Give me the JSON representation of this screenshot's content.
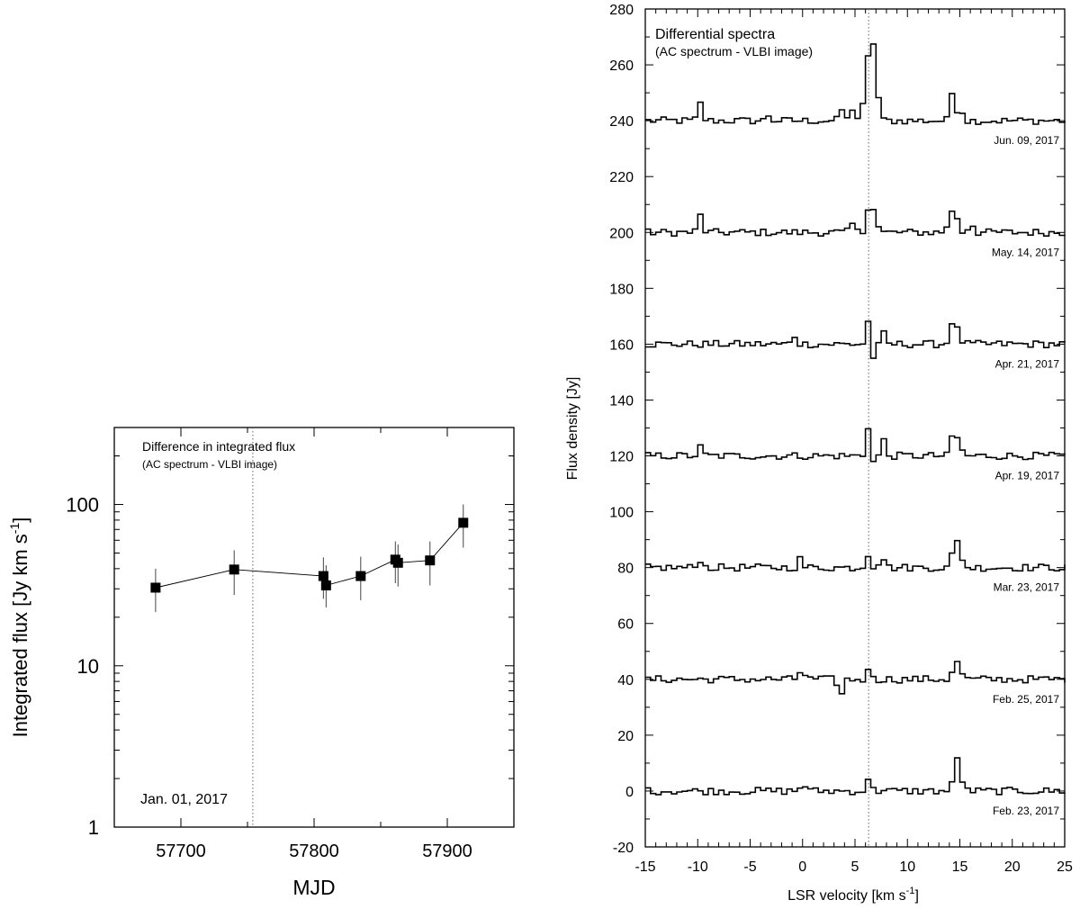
{
  "chart_data": [
    {
      "type": "scatter",
      "title": "Difference in integrated flux",
      "subtitle": "(AC spectrum - VLBI image)",
      "xlabel": "MJD",
      "ylabel": "Integrated flux [Jy km s",
      "ylabel_sup": "-1",
      "ylabel_end": "]",
      "yscale": "log",
      "xlim": [
        57650,
        57950
      ],
      "ylim": [
        1,
        300
      ],
      "xticks": [
        57700,
        57800,
        57900
      ],
      "yticks": [
        1,
        10,
        100
      ],
      "ytick_labels": [
        "1",
        "10",
        "100"
      ],
      "annotation": "Jan. 01, 2017",
      "reference_line_mjd": 57754,
      "series": [
        {
          "name": "integrated flux difference",
          "x": [
            57681,
            57740,
            57807,
            57809,
            57835,
            57861,
            57863,
            57887,
            57912
          ],
          "y": [
            30.5,
            39.5,
            36,
            31.5,
            36,
            45.5,
            43.5,
            45,
            77
          ],
          "yerr_low": [
            21.5,
            27.5,
            26,
            23,
            25.5,
            32.5,
            31,
            31.5,
            54
          ],
          "yerr_high": [
            40,
            52,
            47,
            42,
            47.5,
            59,
            56.5,
            59,
            100
          ]
        }
      ]
    },
    {
      "type": "line",
      "title": "Differential spectra",
      "subtitle": "(AC spectrum - VLBI image)",
      "xlabel": "LSR velocity [km s",
      "xlabel_sup": "-1",
      "xlabel_end": "]",
      "ylabel": "Flux density [Jy]",
      "xlim": [
        -15,
        25
      ],
      "ylim": [
        -20,
        280
      ],
      "xticks": [
        -15,
        -10,
        -5,
        0,
        5,
        10,
        15,
        20,
        25
      ],
      "yticks": [
        -20,
        0,
        20,
        40,
        60,
        80,
        100,
        120,
        140,
        160,
        180,
        200,
        220,
        240,
        260,
        280
      ],
      "reference_line_velocity": 6.3,
      "series": [
        {
          "name": "Jun. 09, 2017",
          "offset": 240,
          "peaks": [
            [
              -10,
              6
            ],
            [
              -3.5,
              2
            ],
            [
              3.5,
              4
            ],
            [
              4.6,
              5
            ],
            [
              5.8,
              13
            ],
            [
              6.3,
              35
            ],
            [
              6.8,
              12
            ],
            [
              14.1,
              11
            ],
            [
              14.8,
              5
            ]
          ]
        },
        {
          "name": "May. 14, 2017",
          "offset": 200,
          "peaks": [
            [
              -10,
              6
            ],
            [
              4.5,
              3
            ],
            [
              6.2,
              14
            ],
            [
              6.7,
              5
            ],
            [
              13.8,
              6
            ],
            [
              14.3,
              8
            ],
            [
              15.8,
              4
            ]
          ]
        },
        {
          "name": "Apr. 21, 2017",
          "offset": 160,
          "peaks": [
            [
              -1,
              3
            ],
            [
              6.1,
              9
            ],
            [
              6.6,
              -7
            ],
            [
              7.4,
              4
            ],
            [
              14,
              8
            ],
            [
              14.6,
              5
            ]
          ]
        },
        {
          "name": "Apr. 19, 2017",
          "offset": 120,
          "peaks": [
            [
              -10,
              3
            ],
            [
              6.1,
              12
            ],
            [
              6.6,
              -5
            ],
            [
              7.4,
              6
            ],
            [
              14.2,
              10
            ],
            [
              14.7,
              4
            ]
          ]
        },
        {
          "name": "Mar. 23, 2017",
          "offset": 80,
          "peaks": [
            [
              -10,
              3
            ],
            [
              -0.5,
              3
            ],
            [
              6,
              5
            ],
            [
              7.3,
              5
            ],
            [
              14.3,
              11
            ],
            [
              14.8,
              5
            ]
          ]
        },
        {
          "name": "Feb. 25, 2017",
          "offset": 40,
          "peaks": [
            [
              -0.3,
              4
            ],
            [
              3.4,
              -6
            ],
            [
              6.2,
              4
            ],
            [
              14.3,
              7
            ],
            [
              14.8,
              3
            ]
          ]
        },
        {
          "name": "Feb. 23, 2017",
          "offset": 0,
          "peaks": [
            [
              -0.2,
              3
            ],
            [
              6.2,
              5
            ],
            [
              14.4,
              12
            ],
            [
              14.9,
              4
            ]
          ]
        }
      ]
    }
  ]
}
